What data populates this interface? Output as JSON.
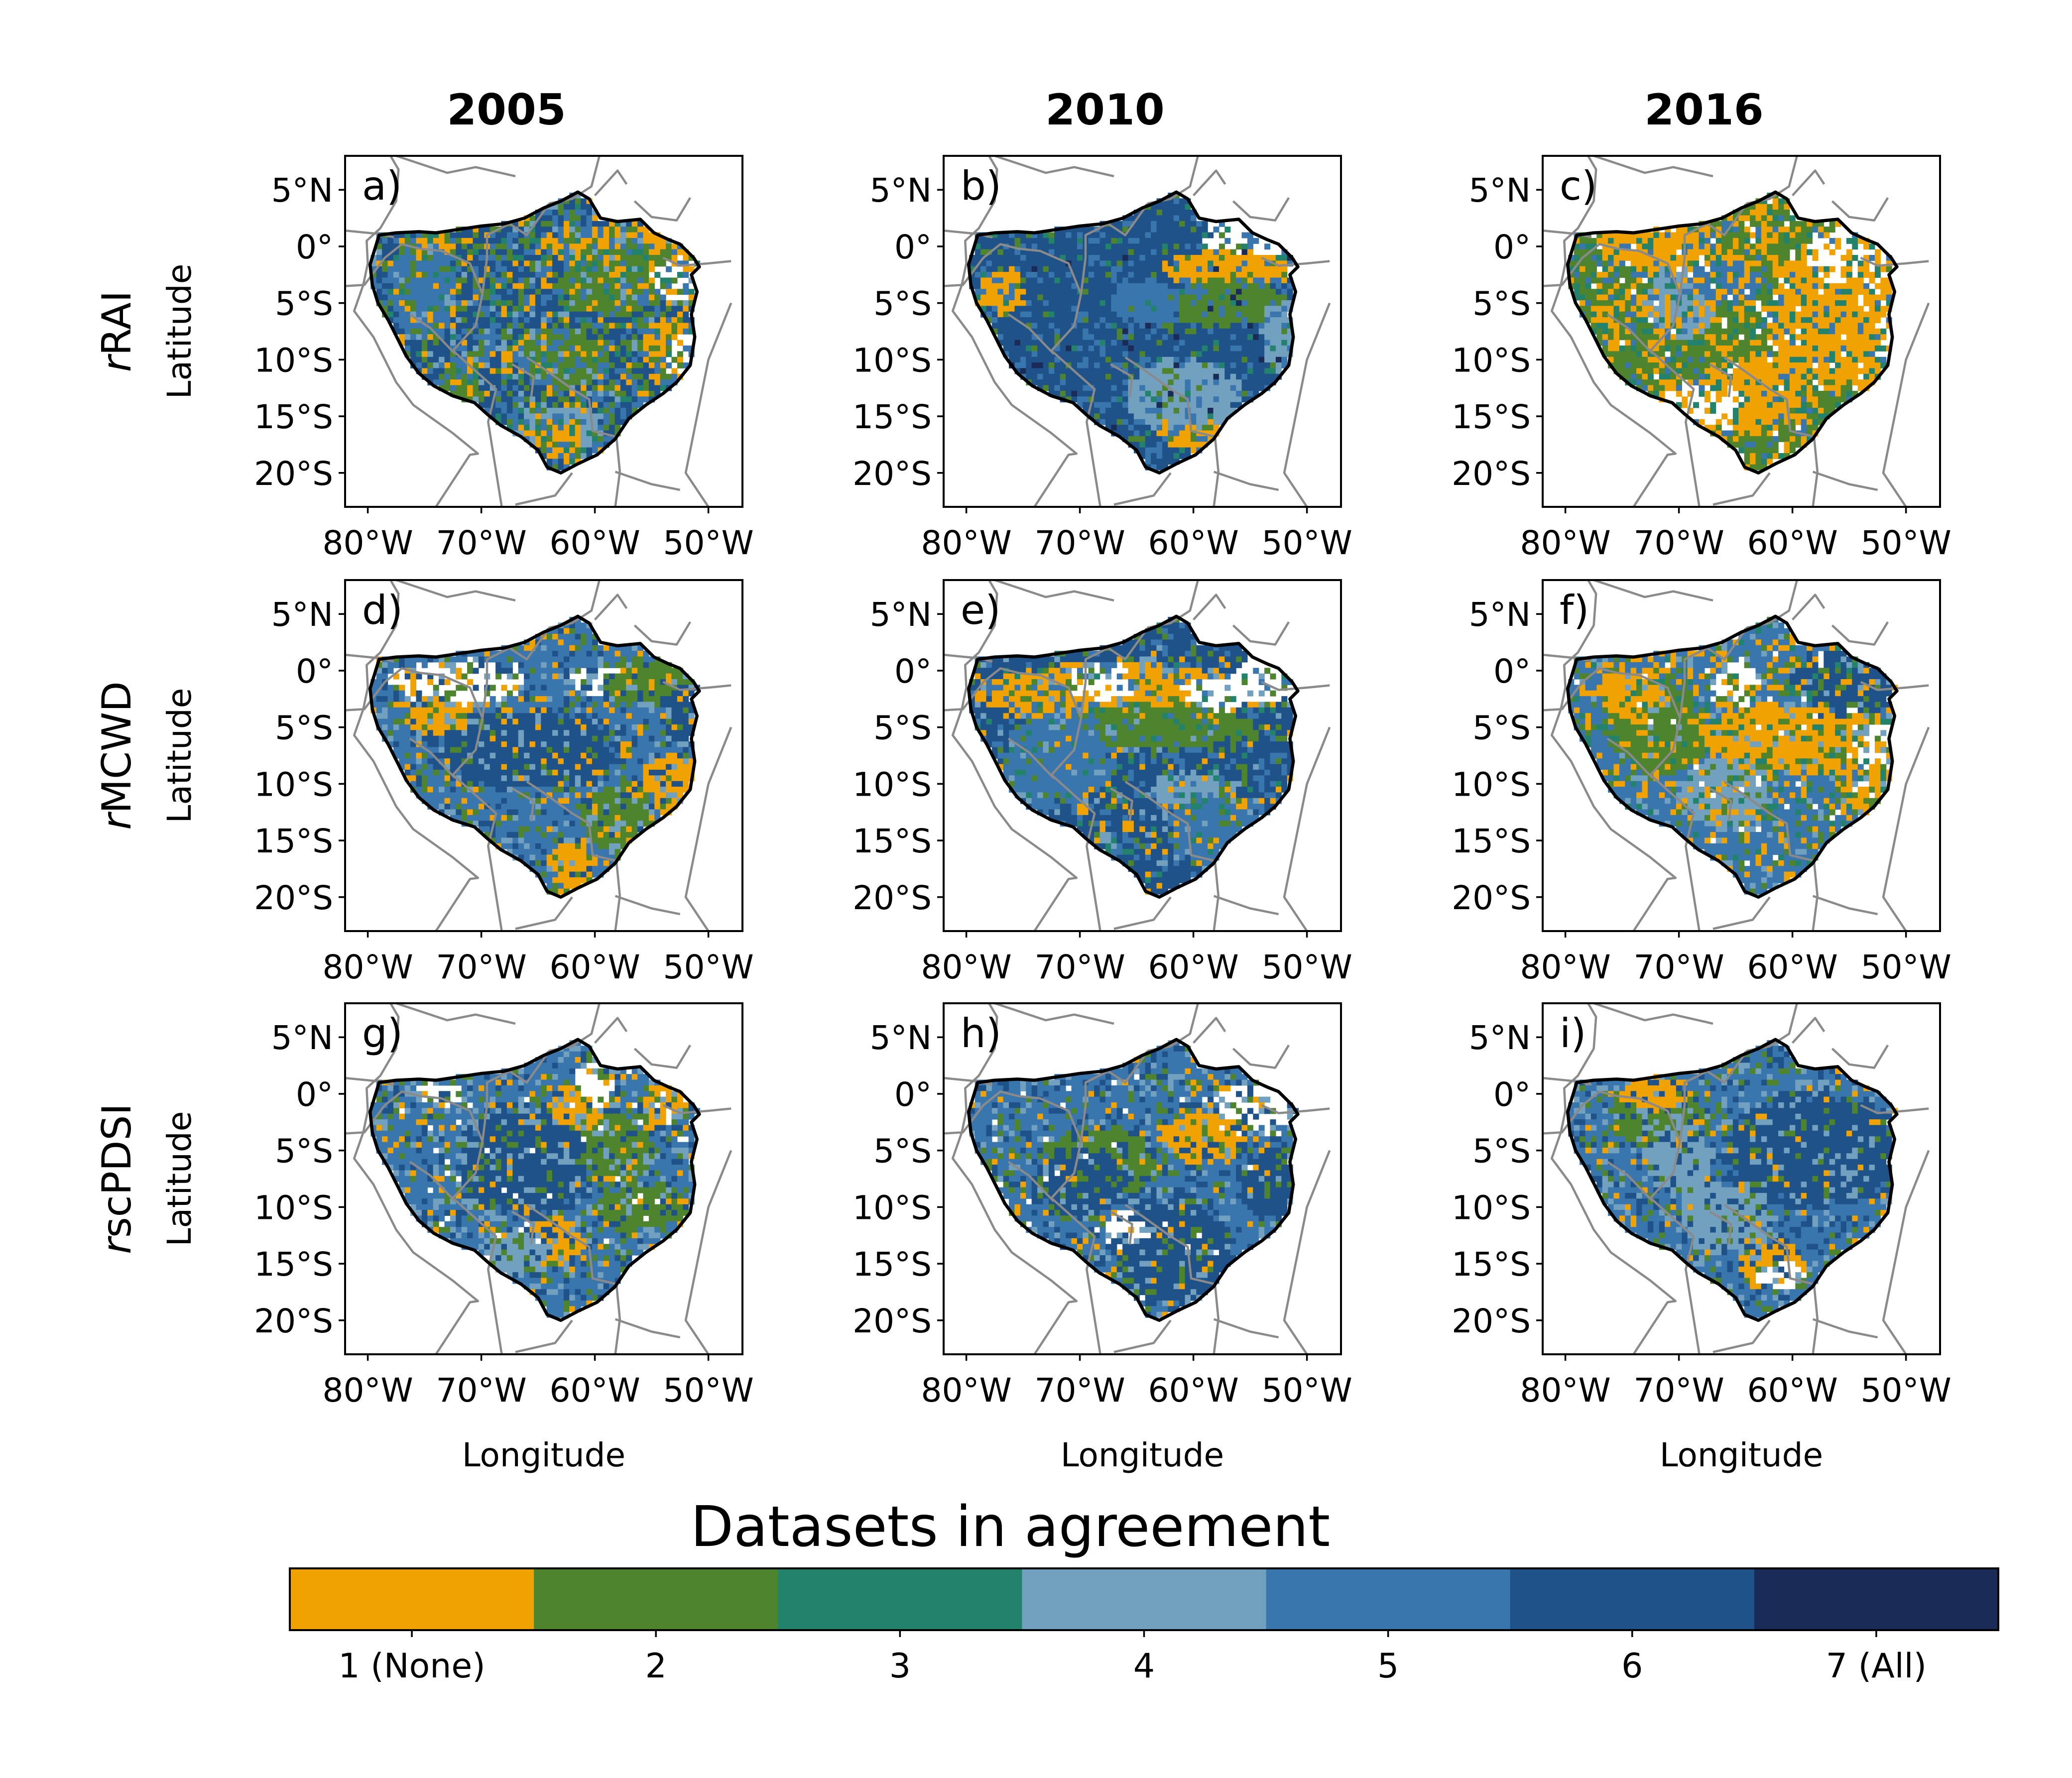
{
  "columns": [
    "2005",
    "2010",
    "2016"
  ],
  "rows": [
    {
      "index_prefix": "r",
      "index_name": "RAI"
    },
    {
      "index_prefix": "r",
      "index_name": "MCWD"
    },
    {
      "index_prefix": "r",
      "index_name": "scPDSI"
    }
  ],
  "panel_letters": [
    "a)",
    "b)",
    "c)",
    "d)",
    "e)",
    "f)",
    "g)",
    "h)",
    "i)"
  ],
  "y_axis_label": "Latitude",
  "x_axis_label": "Longitude",
  "y_ticks": [
    {
      "lat": 5,
      "label": "5°N"
    },
    {
      "lat": 0,
      "label": "0°"
    },
    {
      "lat": -5,
      "label": "5°S"
    },
    {
      "lat": -10,
      "label": "10°S"
    },
    {
      "lat": -15,
      "label": "15°S"
    },
    {
      "lat": -20,
      "label": "20°S"
    }
  ],
  "x_ticks": [
    {
      "lon": -80,
      "label": "80°W"
    },
    {
      "lon": -70,
      "label": "70°W"
    },
    {
      "lon": -60,
      "label": "60°W"
    },
    {
      "lon": -50,
      "label": "50°W"
    }
  ],
  "map_extent": {
    "lon_min": -82,
    "lon_max": -47,
    "lat_min": -23,
    "lat_max": 8
  },
  "colorbar": {
    "title": "Datasets in agreement",
    "classes": [
      {
        "value": 1,
        "label": "1 (None)",
        "color": "#F0A202"
      },
      {
        "value": 2,
        "label": "2",
        "color": "#4E842D"
      },
      {
        "value": 3,
        "label": "3",
        "color": "#23826C"
      },
      {
        "value": 4,
        "label": "4",
        "color": "#72A1C0"
      },
      {
        "value": 5,
        "label": "5",
        "color": "#3A76AE"
      },
      {
        "value": 6,
        "label": "6",
        "color": "#1E5288"
      },
      {
        "value": 7,
        "label": "7 (All)",
        "color": "#1B2B57"
      }
    ]
  },
  "panels": [
    {
      "letter": "a)",
      "year": "2005",
      "index": "rRAI",
      "background_class": 6,
      "patches": [
        {
          "class": 6,
          "lon": -68,
          "lat": -7,
          "rlon": 7,
          "rlat": 6
        },
        {
          "class": 1,
          "lon": -58,
          "lat": 0,
          "rlon": 6,
          "rlat": 2
        },
        {
          "class": 2,
          "lon": -58,
          "lat": -3,
          "rlon": 5,
          "rlat": 3
        },
        {
          "class": 1,
          "lon": -53,
          "lat": -9,
          "rlon": 3,
          "rlat": 3
        },
        {
          "class": 2,
          "lon": -63,
          "lat": -10,
          "rlon": 3,
          "rlat": 3
        },
        {
          "class": 4,
          "lon": -63,
          "lat": -16,
          "rlon": 4,
          "rlat": 2
        },
        {
          "class": 1,
          "lon": -63,
          "lat": -17,
          "rlon": 2,
          "rlat": 2
        },
        {
          "class": 1,
          "lon": -74,
          "lat": 0,
          "rlon": 2,
          "rlat": 1
        },
        {
          "class": 5,
          "lon": -75,
          "lat": -4,
          "rlon": 3,
          "rlat": 4
        },
        {
          "class": 2,
          "lon": -72,
          "lat": -12,
          "rlon": 2,
          "rlat": 2
        },
        {
          "class": 0,
          "lon": -53,
          "lat": -3,
          "rlon": 2,
          "rlat": 2
        },
        {
          "class": 0,
          "lon": -52,
          "lat": -10,
          "rlon": 2,
          "rlat": 2
        }
      ],
      "speckle": [
        {
          "class": 1,
          "p": 0.1
        },
        {
          "class": 2,
          "p": 0.16
        },
        {
          "class": 3,
          "p": 0.06
        },
        {
          "class": 5,
          "p": 0.18
        },
        {
          "class": 4,
          "p": 0.06
        }
      ]
    },
    {
      "letter": "b)",
      "year": "2010",
      "index": "rRAI",
      "background_class": 6,
      "patches": [
        {
          "class": 0,
          "lon": -54,
          "lat": 0,
          "rlon": 5,
          "rlat": 3
        },
        {
          "class": 1,
          "lon": -57,
          "lat": -2,
          "rlon": 6,
          "rlat": 1.5
        },
        {
          "class": 1,
          "lon": -77,
          "lat": -4,
          "rlon": 2,
          "rlat": 2
        },
        {
          "class": 1,
          "lon": -60,
          "lat": -16,
          "rlon": 3,
          "rlat": 2
        },
        {
          "class": 4,
          "lon": -61,
          "lat": -13,
          "rlon": 5,
          "rlat": 3
        },
        {
          "class": 2,
          "lon": -57,
          "lat": -5,
          "rlon": 5,
          "rlat": 2
        },
        {
          "class": 5,
          "lon": -64,
          "lat": -5,
          "rlon": 3,
          "rlat": 2
        },
        {
          "class": 4,
          "lon": -52,
          "lat": -8,
          "rlon": 2,
          "rlat": 3
        }
      ],
      "speckle": [
        {
          "class": 2,
          "p": 0.06
        },
        {
          "class": 3,
          "p": 0.04
        },
        {
          "class": 5,
          "p": 0.14
        },
        {
          "class": 7,
          "p": 0.02
        }
      ]
    },
    {
      "letter": "c)",
      "year": "2016",
      "index": "rRAI",
      "background_class": 2,
      "patches": [
        {
          "class": 1,
          "lon": -56,
          "lat": -6,
          "rlon": 6,
          "rlat": 6
        },
        {
          "class": 1,
          "lon": -64,
          "lat": -13,
          "rlon": 5,
          "rlat": 3
        },
        {
          "class": 0,
          "lon": -55,
          "lat": -1,
          "rlon": 4,
          "rlat": 2.5
        },
        {
          "class": 0,
          "lon": -51,
          "lat": -9,
          "rlon": 2,
          "rlat": 3
        },
        {
          "class": 0,
          "lon": -68,
          "lat": -14,
          "rlon": 4,
          "rlat": 2
        },
        {
          "class": 4,
          "lon": -70,
          "lat": -5,
          "rlon": 3,
          "rlat": 3
        },
        {
          "class": 5,
          "lon": -66,
          "lat": -3,
          "rlon": 3,
          "rlat": 2
        },
        {
          "class": 1,
          "lon": -72,
          "lat": 0,
          "rlon": 5,
          "rlat": 2
        }
      ],
      "speckle": [
        {
          "class": 1,
          "p": 0.25
        },
        {
          "class": 3,
          "p": 0.12
        },
        {
          "class": 5,
          "p": 0.08
        },
        {
          "class": 0,
          "p": 0.05
        }
      ]
    },
    {
      "letter": "d)",
      "year": "2005",
      "index": "rMCWD",
      "background_class": 5,
      "patches": [
        {
          "class": 6,
          "lon": -66,
          "lat": -7,
          "rlon": 8,
          "rlat": 3.5
        },
        {
          "class": 0,
          "lon": -72,
          "lat": -1,
          "rlon": 6,
          "rlat": 2
        },
        {
          "class": 0,
          "lon": -59,
          "lat": -1,
          "rlon": 3,
          "rlat": 1.5
        },
        {
          "class": 1,
          "lon": -74,
          "lat": -4,
          "rlon": 3,
          "rlat": 1.5
        },
        {
          "class": 2,
          "lon": -55,
          "lat": -1,
          "rlon": 4,
          "rlat": 2
        },
        {
          "class": 1,
          "lon": -53,
          "lat": -10,
          "rlon": 2.5,
          "rlat": 2.5
        },
        {
          "class": 2,
          "lon": -58,
          "lat": -13,
          "rlon": 3,
          "rlat": 3
        },
        {
          "class": 1,
          "lon": -62,
          "lat": -17,
          "rlon": 2,
          "rlat": 2
        },
        {
          "class": 6,
          "lon": -51,
          "lat": -4,
          "rlon": 3,
          "rlat": 3
        }
      ],
      "speckle": [
        {
          "class": 1,
          "p": 0.07
        },
        {
          "class": 2,
          "p": 0.08
        },
        {
          "class": 4,
          "p": 0.1
        },
        {
          "class": 6,
          "p": 0.1
        }
      ]
    },
    {
      "letter": "e)",
      "year": "2010",
      "index": "rMCWD",
      "background_class": 6,
      "patches": [
        {
          "class": 1,
          "lon": -67,
          "lat": -2,
          "rlon": 12,
          "rlat": 2.5
        },
        {
          "class": 0,
          "lon": -68,
          "lat": -1,
          "rlon": 3,
          "rlat": 1.5
        },
        {
          "class": 0,
          "lon": -58,
          "lat": -2,
          "rlon": 3,
          "rlat": 1.5
        },
        {
          "class": 0,
          "lon": -54,
          "lat": -1,
          "rlon": 3,
          "rlat": 2
        },
        {
          "class": 2,
          "lon": -63,
          "lat": -5,
          "rlon": 8,
          "rlat": 2
        },
        {
          "class": 5,
          "lon": -72,
          "lat": -8,
          "rlon": 5,
          "rlat": 4
        },
        {
          "class": 4,
          "lon": -60,
          "lat": -11,
          "rlon": 4,
          "rlat": 2
        },
        {
          "class": 5,
          "lon": -58,
          "lat": -14,
          "rlon": 4,
          "rlat": 3
        }
      ],
      "speckle": [
        {
          "class": 1,
          "p": 0.05
        },
        {
          "class": 2,
          "p": 0.07
        },
        {
          "class": 3,
          "p": 0.05
        },
        {
          "class": 5,
          "p": 0.12
        },
        {
          "class": 4,
          "p": 0.05
        }
      ]
    },
    {
      "letter": "f)",
      "year": "2016",
      "index": "rMCWD",
      "background_class": 5,
      "patches": [
        {
          "class": 1,
          "lon": -60,
          "lat": -6,
          "rlon": 9,
          "rlat": 3
        },
        {
          "class": 6,
          "lon": -55,
          "lat": -1,
          "rlon": 5,
          "rlat": 3
        },
        {
          "class": 0,
          "lon": -52,
          "lat": -7,
          "rlon": 2.5,
          "rlat": 2.5
        },
        {
          "class": 0,
          "lon": -65,
          "lat": -1,
          "rlon": 2,
          "rlat": 2
        },
        {
          "class": 1,
          "lon": -53,
          "lat": -11,
          "rlon": 2.5,
          "rlat": 2
        },
        {
          "class": 2,
          "lon": -72,
          "lat": -5,
          "rlon": 4,
          "rlat": 4
        },
        {
          "class": 1,
          "lon": -74,
          "lat": -2,
          "rlon": 3,
          "rlat": 2
        },
        {
          "class": 4,
          "lon": -66,
          "lat": -11,
          "rlon": 4,
          "rlat": 3
        }
      ],
      "speckle": [
        {
          "class": 1,
          "p": 0.14
        },
        {
          "class": 2,
          "p": 0.12
        },
        {
          "class": 3,
          "p": 0.07
        },
        {
          "class": 4,
          "p": 0.07
        },
        {
          "class": 0,
          "p": 0.03
        }
      ]
    },
    {
      "letter": "g)",
      "year": "2005",
      "index": "rscPDSI",
      "background_class": 5,
      "patches": [
        {
          "class": 6,
          "lon": -66,
          "lat": -6,
          "rlon": 6,
          "rlat": 5
        },
        {
          "class": 1,
          "lon": -61,
          "lat": -1,
          "rlon": 3,
          "rlat": 2
        },
        {
          "class": 0,
          "lon": -60,
          "lat": 1,
          "rlon": 1.5,
          "rlat": 2
        },
        {
          "class": 0,
          "lon": -74,
          "lat": 0,
          "rlon": 2,
          "rlat": 1
        },
        {
          "class": 2,
          "lon": -58,
          "lat": -5,
          "rlon": 3,
          "rlat": 3
        },
        {
          "class": 1,
          "lon": -64,
          "lat": -13,
          "rlon": 3,
          "rlat": 2
        },
        {
          "class": 2,
          "lon": -56,
          "lat": -10,
          "rlon": 4,
          "rlat": 2
        },
        {
          "class": 4,
          "lon": -67,
          "lat": -14,
          "rlon": 3,
          "rlat": 2
        },
        {
          "class": 1,
          "lon": -54,
          "lat": -1,
          "rlon": 2,
          "rlat": 2
        }
      ],
      "speckle": [
        {
          "class": 1,
          "p": 0.06
        },
        {
          "class": 2,
          "p": 0.1
        },
        {
          "class": 4,
          "p": 0.12
        },
        {
          "class": 6,
          "p": 0.1
        },
        {
          "class": 0,
          "p": 0.02
        }
      ]
    },
    {
      "letter": "h)",
      "year": "2010",
      "index": "rscPDSI",
      "background_class": 5,
      "patches": [
        {
          "class": 0,
          "lon": -54,
          "lat": -1,
          "rlon": 4,
          "rlat": 2
        },
        {
          "class": 1,
          "lon": -59,
          "lat": -4,
          "rlon": 4,
          "rlat": 2
        },
        {
          "class": 6,
          "lon": -62,
          "lat": -14,
          "rlon": 5,
          "rlat": 5
        },
        {
          "class": 2,
          "lon": -68,
          "lat": -6,
          "rlon": 5,
          "rlat": 3
        },
        {
          "class": 6,
          "lon": -70,
          "lat": -8,
          "rlon": 4,
          "rlat": 3
        },
        {
          "class": 0,
          "lon": -66,
          "lat": -12,
          "rlon": 2,
          "rlat": 1.5
        },
        {
          "class": 6,
          "lon": -53,
          "lat": -8,
          "rlon": 3,
          "rlat": 3
        }
      ],
      "speckle": [
        {
          "class": 1,
          "p": 0.04
        },
        {
          "class": 2,
          "p": 0.09
        },
        {
          "class": 4,
          "p": 0.1
        },
        {
          "class": 6,
          "p": 0.15
        },
        {
          "class": 0,
          "p": 0.02
        }
      ]
    },
    {
      "letter": "i)",
      "year": "2016",
      "index": "rscPDSI",
      "background_class": 5,
      "patches": [
        {
          "class": 6,
          "lon": -58,
          "lat": -5,
          "rlon": 8,
          "rlat": 5
        },
        {
          "class": 2,
          "lon": -72,
          "lat": -2,
          "rlon": 4,
          "rlat": 3
        },
        {
          "class": 1,
          "lon": -72,
          "lat": 0,
          "rlon": 3,
          "rlat": 1.5
        },
        {
          "class": 1,
          "lon": -62,
          "lat": -15,
          "rlon": 3,
          "rlat": 2
        },
        {
          "class": 0,
          "lon": -61,
          "lat": -16,
          "rlon": 2,
          "rlat": 1.2
        },
        {
          "class": 4,
          "lon": -66,
          "lat": -11,
          "rlon": 4,
          "rlat": 3
        },
        {
          "class": 4,
          "lon": -70,
          "lat": -6,
          "rlon": 3,
          "rlat": 3
        }
      ],
      "speckle": [
        {
          "class": 1,
          "p": 0.04
        },
        {
          "class": 2,
          "p": 0.08
        },
        {
          "class": 4,
          "p": 0.12
        },
        {
          "class": 6,
          "p": 0.14
        }
      ]
    }
  ]
}
